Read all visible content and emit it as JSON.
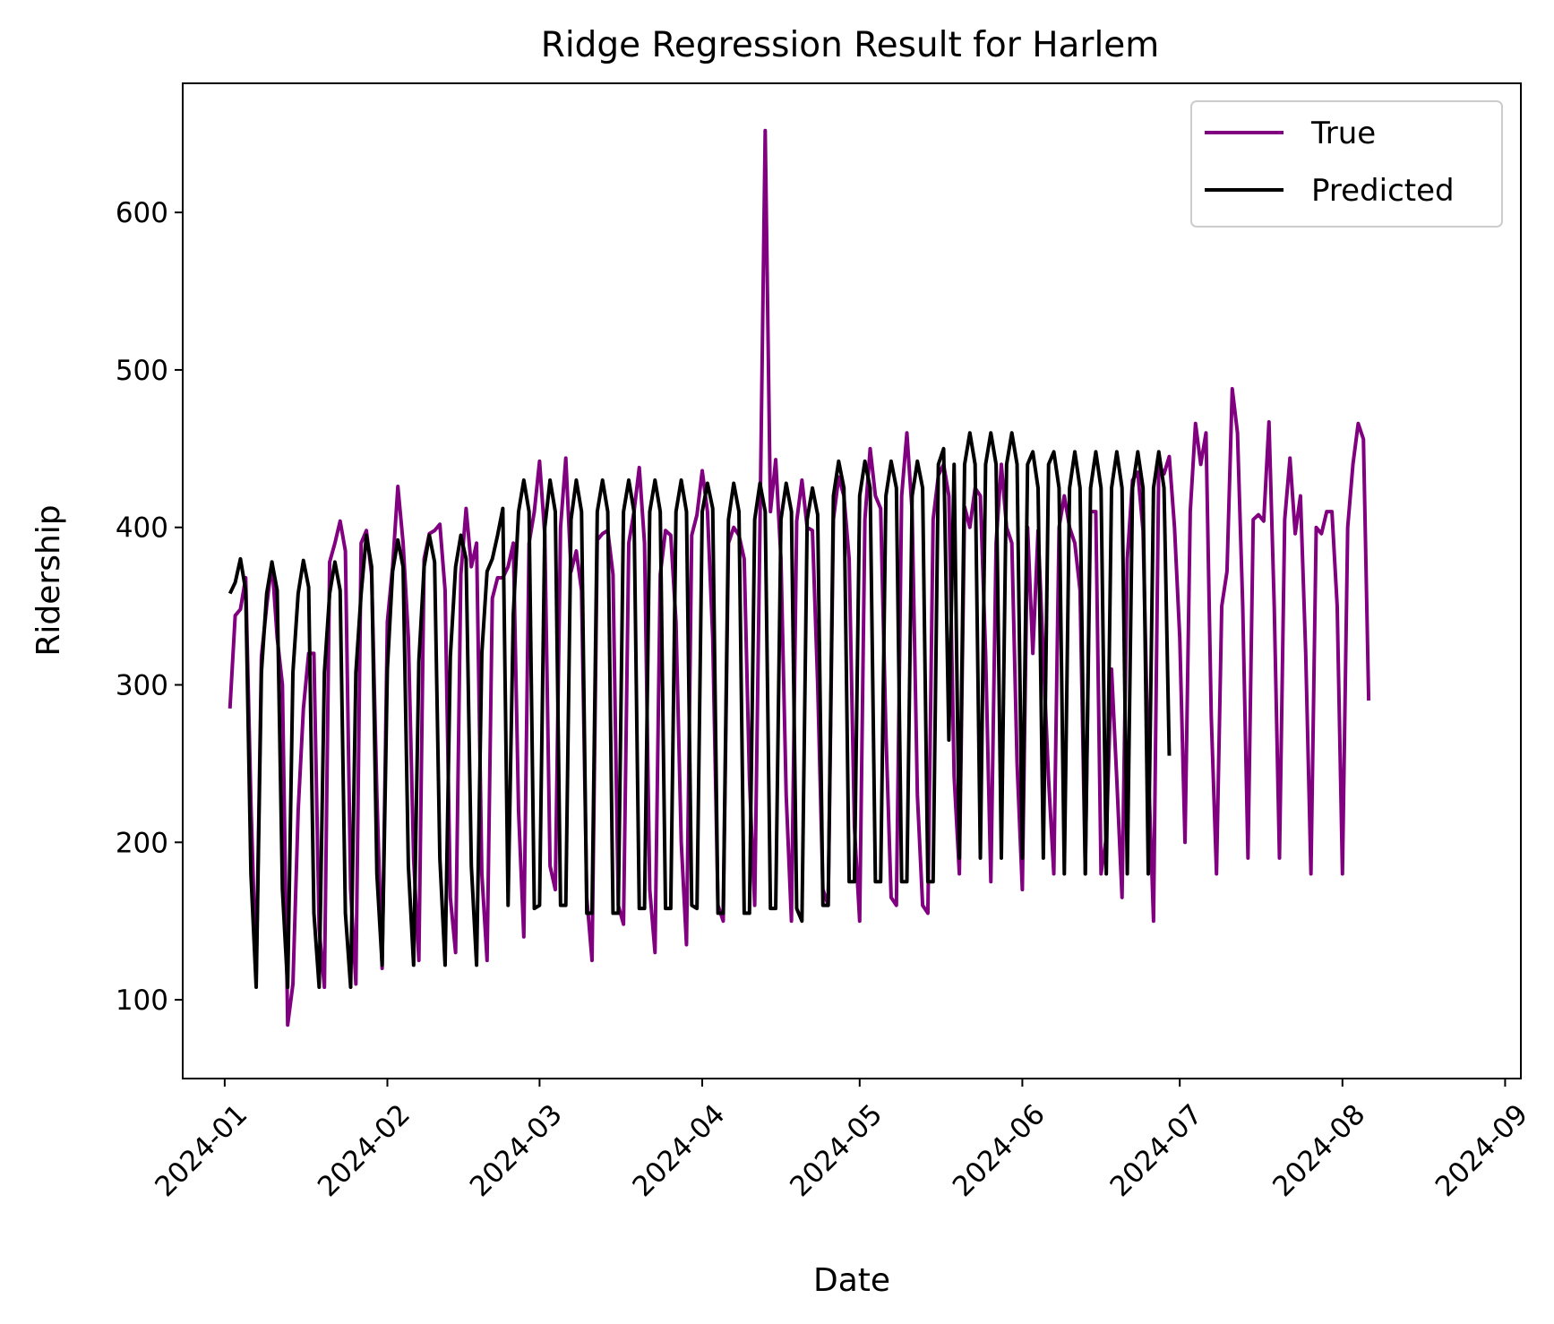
{
  "chart_data": {
    "type": "line",
    "title": "Ridge Regression Result for Harlem",
    "xlabel": "Date",
    "ylabel": "Ridership",
    "xlim": [
      "2023-12-24",
      "2024-09-04"
    ],
    "ylim": [
      50,
      682
    ],
    "x_ticks": [
      "2024-01-01",
      "2024-02-01",
      "2024-03-01",
      "2024-04-01",
      "2024-05-01",
      "2024-06-01",
      "2024-07-01",
      "2024-08-01",
      "2024-09-01"
    ],
    "x_tick_labels": [
      "2024-01",
      "2024-02",
      "2024-03",
      "2024-04",
      "2024-05",
      "2024-06",
      "2024-07",
      "2024-08",
      "2024-09"
    ],
    "y_ticks": [
      100,
      200,
      300,
      400,
      500,
      600
    ],
    "y_tick_labels": [
      "100",
      "200",
      "300",
      "400",
      "500",
      "600"
    ],
    "grid": false,
    "legend": "top-right",
    "start_date": "2024-01-02",
    "series": [
      {
        "name": "True",
        "color": "#800080",
        "values": [
          285,
          344,
          348,
          368,
          225,
          115,
          318,
          350,
          378,
          330,
          300,
          84,
          110,
          220,
          285,
          320,
          320,
          145,
          108,
          378,
          390,
          404,
          385,
          170,
          110,
          390,
          398,
          370,
          230,
          120,
          340,
          375,
          426,
          390,
          330,
          190,
          125,
          380,
          396,
          398,
          402,
          360,
          165,
          130,
          370,
          412,
          375,
          390,
          180,
          125,
          355,
          368,
          368,
          375,
          390,
          220,
          140,
          390,
          410,
          442,
          395,
          185,
          170,
          400,
          444,
          372,
          385,
          360,
          165,
          125,
          392,
          396,
          398,
          370,
          160,
          148,
          390,
          410,
          438,
          390,
          170,
          130,
          370,
          398,
          395,
          340,
          200,
          135,
          395,
          408,
          436,
          410,
          330,
          160,
          150,
          390,
          400,
          395,
          380,
          240,
          160,
          400,
          652,
          410,
          443,
          380,
          230,
          150,
          404,
          430,
          400,
          398,
          300,
          170,
          160,
          405,
          432,
          420,
          380,
          210,
          150,
          405,
          450,
          420,
          412,
          270,
          165,
          160,
          420,
          460,
          410,
          230,
          160,
          155,
          405,
          433,
          440,
          420,
          242,
          180,
          413,
          400,
          425,
          420,
          320,
          175,
          390,
          440,
          400,
          390,
          250,
          170,
          400,
          320,
          398,
          318,
          240,
          180,
          400,
          420,
          400,
          390,
          360,
          180,
          410,
          410,
          180,
          203,
          310,
          240,
          165,
          380,
          430,
          435,
          398,
          250,
          150,
          440,
          434,
          445,
          400,
          330,
          200,
          410,
          466,
          440,
          460,
          280,
          180,
          350,
          372,
          488,
          460,
          350,
          190,
          405,
          408,
          404,
          467,
          350,
          190,
          405,
          444,
          396,
          420,
          320,
          180,
          400,
          396,
          410,
          410,
          350,
          180,
          400,
          440,
          466,
          456,
          290
        ]
      },
      {
        "name": "Predicted",
        "color": "#000000",
        "values": [
          358,
          365,
          380,
          360,
          180,
          108,
          308,
          358,
          378,
          360,
          170,
          108,
          308,
          358,
          379,
          362,
          155,
          108,
          308,
          358,
          378,
          360,
          155,
          108,
          308,
          358,
          395,
          375,
          180,
          122,
          310,
          372,
          392,
          375,
          185,
          122,
          315,
          375,
          395,
          378,
          190,
          122,
          318,
          375,
          395,
          380,
          185,
          122,
          320,
          372,
          380,
          395,
          412,
          160,
          345,
          410,
          430,
          410,
          158,
          160,
          400,
          430,
          410,
          160,
          160,
          405,
          430,
          410,
          155,
          155,
          410,
          430,
          410,
          155,
          155,
          410,
          430,
          410,
          158,
          158,
          410,
          430,
          410,
          158,
          158,
          410,
          430,
          410,
          160,
          158,
          410,
          428,
          412,
          155,
          155,
          405,
          428,
          410,
          155,
          155,
          405,
          428,
          410,
          158,
          158,
          405,
          428,
          410,
          158,
          150,
          405,
          425,
          408,
          160,
          160,
          420,
          442,
          425,
          175,
          175,
          420,
          442,
          425,
          175,
          175,
          420,
          442,
          425,
          175,
          175,
          420,
          442,
          425,
          175,
          175,
          440,
          450,
          265,
          440,
          190,
          440,
          460,
          440,
          190,
          440,
          460,
          440,
          190,
          440,
          460,
          440,
          190,
          440,
          448,
          425,
          190,
          440,
          448,
          425,
          180,
          425,
          448,
          425,
          180,
          425,
          448,
          425,
          180,
          425,
          448,
          425,
          180,
          425,
          448,
          425,
          180,
          425,
          448,
          425,
          255
        ]
      }
    ]
  }
}
